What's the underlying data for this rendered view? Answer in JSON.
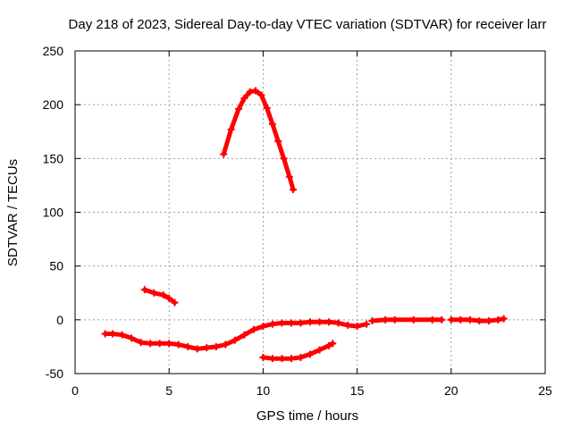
{
  "chart_data": {
    "type": "scatter",
    "title": "Day 218 of 2023, Sidereal Day-to-day VTEC variation (SDTVAR) for receiver larr",
    "xlabel": "GPS time / hours",
    "ylabel": "SDTVAR / TECUs",
    "xlim": [
      0,
      25
    ],
    "ylim": [
      -50,
      250
    ],
    "xticks": [
      "0",
      "5",
      "10",
      "15",
      "20",
      "25"
    ],
    "yticks": [
      "-50",
      "0",
      "50",
      "100",
      "150",
      "200",
      "250"
    ],
    "grid": true,
    "color": "#ff0000",
    "segments": [
      {
        "x": [
          1.6,
          2.0,
          2.5,
          3.0,
          3.5,
          4.0,
          4.5,
          5.0,
          5.5,
          6.0,
          6.5,
          7.0,
          7.5,
          8.0,
          8.5,
          9.0,
          9.5,
          10.0,
          10.5,
          11.0,
          11.5,
          12.0,
          12.5,
          13.0,
          13.5,
          14.0,
          14.5,
          15.0,
          15.5
        ],
        "y": [
          -13,
          -13,
          -14,
          -17,
          -21,
          -22,
          -22,
          -22,
          -23,
          -25,
          -27,
          -26,
          -25,
          -23,
          -19,
          -14,
          -9,
          -6,
          -4,
          -3,
          -3,
          -3,
          -2,
          -2,
          -2,
          -3,
          -5,
          -6,
          -4
        ]
      },
      {
        "x": [
          15.8,
          16.5,
          17.0,
          18.0,
          19.0,
          19.5
        ],
        "y": [
          -1,
          0,
          0,
          0,
          0,
          0
        ]
      },
      {
        "x": [
          20.0,
          20.5,
          21.0,
          21.5,
          22.0,
          22.5,
          22.8
        ],
        "y": [
          0,
          0,
          0,
          -1,
          -1,
          0,
          1
        ]
      },
      {
        "x": [
          3.7,
          4.2,
          4.7,
          5.0,
          5.3
        ],
        "y": [
          28,
          25,
          23,
          20,
          16
        ]
      },
      {
        "x": [
          7.9,
          8.3,
          8.7,
          9.0,
          9.3,
          9.6,
          9.9,
          10.2,
          10.5,
          10.8,
          11.1,
          11.4,
          11.6
        ],
        "y": [
          154,
          177,
          196,
          206,
          212,
          213,
          209,
          197,
          182,
          166,
          150,
          133,
          121
        ]
      },
      {
        "x": [
          10.0,
          10.5,
          11.0,
          11.5,
          12.0,
          12.5,
          13.0,
          13.5,
          13.7
        ],
        "y": [
          -35,
          -36,
          -36,
          -36,
          -35,
          -32,
          -28,
          -24,
          -22
        ]
      }
    ]
  }
}
